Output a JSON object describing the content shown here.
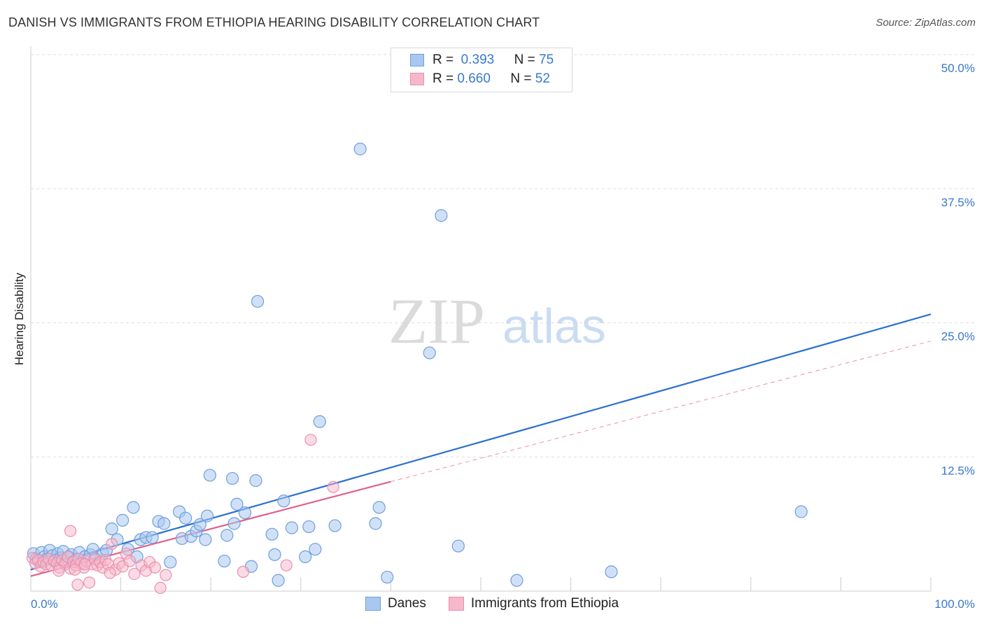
{
  "title": "DANISH VS IMMIGRANTS FROM ETHIOPIA HEARING DISABILITY CORRELATION CHART",
  "source": "Source: ZipAtlas.com",
  "watermark": {
    "zip": "ZIP",
    "atlas": "atlas"
  },
  "legend": {
    "danes": {
      "r_label": "R =",
      "r_value": "0.393",
      "n_label": "N =",
      "n_value": "75"
    },
    "ethiopia": {
      "r_label": "R =",
      "r_value": "0.660",
      "n_label": "N =",
      "n_value": "52"
    }
  },
  "colors": {
    "danes_fill": "#a9c8f0",
    "danes_stroke": "#6e9fdc",
    "danes_line": "#2b6fcf",
    "eth_fill": "#f6b8cb",
    "eth_stroke": "#ec8fab",
    "eth_line": "#e0608a",
    "grid": "#dddddd",
    "tick_label": "#3a78cc"
  },
  "chart_data": {
    "type": "scatter",
    "title": "DANISH VS IMMIGRANTS FROM ETHIOPIA HEARING DISABILITY CORRELATION CHART",
    "xlabel": "",
    "ylabel": "Hearing Disability",
    "xlim": [
      0,
      100
    ],
    "ylim": [
      0,
      50
    ],
    "x_tick_labels": [
      "0.0%",
      "100.0%"
    ],
    "y_ticks": [
      12.5,
      25.0,
      37.5,
      50.0
    ],
    "y_tick_labels": [
      "12.5%",
      "25.0%",
      "37.5%",
      "50.0%"
    ],
    "grid": true,
    "legend_position": "top-center",
    "series": [
      {
        "name": "Danes",
        "points": [
          [
            0.3,
            3.5
          ],
          [
            0.6,
            3.0
          ],
          [
            0.9,
            2.8
          ],
          [
            1.2,
            3.6
          ],
          [
            1.5,
            3.2
          ],
          [
            1.8,
            3.0
          ],
          [
            2.1,
            3.8
          ],
          [
            2.4,
            3.3
          ],
          [
            2.7,
            2.9
          ],
          [
            3.0,
            3.5
          ],
          [
            3.3,
            3.1
          ],
          [
            3.6,
            3.7
          ],
          [
            3.9,
            2.7
          ],
          [
            4.2,
            3.2
          ],
          [
            4.5,
            3.4
          ],
          [
            4.8,
            2.8
          ],
          [
            5.1,
            3.0
          ],
          [
            5.4,
            3.6
          ],
          [
            6.0,
            3.2
          ],
          [
            6.6,
            3.4
          ],
          [
            6.9,
            3.9
          ],
          [
            7.2,
            3.0
          ],
          [
            8.0,
            3.5
          ],
          [
            8.4,
            3.8
          ],
          [
            9.0,
            5.8
          ],
          [
            9.6,
            4.8
          ],
          [
            10.2,
            6.6
          ],
          [
            10.8,
            3.9
          ],
          [
            11.4,
            7.8
          ],
          [
            11.8,
            3.2
          ],
          [
            12.2,
            4.8
          ],
          [
            12.8,
            5.0
          ],
          [
            13.5,
            5.0
          ],
          [
            14.2,
            6.5
          ],
          [
            14.8,
            6.3
          ],
          [
            15.5,
            2.7
          ],
          [
            16.5,
            7.4
          ],
          [
            16.8,
            4.9
          ],
          [
            17.2,
            6.8
          ],
          [
            17.8,
            5.1
          ],
          [
            18.4,
            5.6
          ],
          [
            18.8,
            6.2
          ],
          [
            19.4,
            4.8
          ],
          [
            19.6,
            7.0
          ],
          [
            19.9,
            10.8
          ],
          [
            21.5,
            2.8
          ],
          [
            21.8,
            5.2
          ],
          [
            22.4,
            10.5
          ],
          [
            22.6,
            6.3
          ],
          [
            22.9,
            8.1
          ],
          [
            23.8,
            7.3
          ],
          [
            24.5,
            2.3
          ],
          [
            25.0,
            10.3
          ],
          [
            25.2,
            27.0
          ],
          [
            26.8,
            5.3
          ],
          [
            27.1,
            3.4
          ],
          [
            27.5,
            1.0
          ],
          [
            28.1,
            8.4
          ],
          [
            29.0,
            5.9
          ],
          [
            30.5,
            3.2
          ],
          [
            30.9,
            6.0
          ],
          [
            31.6,
            3.9
          ],
          [
            32.1,
            15.8
          ],
          [
            33.8,
            6.1
          ],
          [
            36.6,
            41.2
          ],
          [
            38.3,
            6.3
          ],
          [
            38.7,
            7.8
          ],
          [
            39.6,
            1.3
          ],
          [
            44.3,
            22.2
          ],
          [
            45.6,
            35.0
          ],
          [
            47.5,
            4.2
          ],
          [
            47.9,
            48.4
          ],
          [
            54.0,
            1.0
          ],
          [
            64.5,
            1.8
          ],
          [
            85.6,
            7.4
          ]
        ],
        "trend": [
          [
            0,
            2.0
          ],
          [
            100,
            25.8
          ]
        ]
      },
      {
        "name": "Immigrants from Ethiopia",
        "points": [
          [
            0.2,
            3.1
          ],
          [
            0.5,
            2.6
          ],
          [
            0.8,
            2.9
          ],
          [
            1.1,
            2.3
          ],
          [
            1.4,
            2.7
          ],
          [
            1.7,
            2.5
          ],
          [
            2.0,
            3.0
          ],
          [
            2.3,
            2.4
          ],
          [
            2.6,
            2.8
          ],
          [
            2.9,
            2.6
          ],
          [
            3.2,
            2.2
          ],
          [
            3.5,
            2.9
          ],
          [
            3.8,
            2.5
          ],
          [
            4.1,
            3.2
          ],
          [
            4.4,
            2.1
          ],
          [
            4.7,
            2.7
          ],
          [
            5.0,
            2.4
          ],
          [
            5.3,
            3.0
          ],
          [
            5.6,
            2.6
          ],
          [
            5.9,
            2.2
          ],
          [
            6.2,
            2.8
          ],
          [
            6.5,
            0.8
          ],
          [
            6.8,
            2.5
          ],
          [
            7.1,
            3.0
          ],
          [
            7.4,
            2.4
          ],
          [
            7.7,
            2.7
          ],
          [
            8.0,
            2.2
          ],
          [
            8.3,
            2.9
          ],
          [
            8.6,
            2.5
          ],
          [
            9.0,
            4.4
          ],
          [
            9.4,
            2.0
          ],
          [
            9.8,
            2.6
          ],
          [
            10.2,
            2.3
          ],
          [
            10.6,
            3.5
          ],
          [
            11.0,
            2.8
          ],
          [
            11.5,
            1.6
          ],
          [
            4.4,
            5.6
          ],
          [
            4.9,
            2.0
          ],
          [
            5.2,
            0.6
          ],
          [
            8.8,
            1.7
          ],
          [
            12.3,
            2.4
          ],
          [
            12.8,
            1.9
          ],
          [
            13.2,
            2.7
          ],
          [
            13.8,
            2.2
          ],
          [
            14.4,
            0.3
          ],
          [
            15.0,
            1.5
          ],
          [
            23.6,
            1.8
          ],
          [
            28.4,
            2.4
          ],
          [
            31.1,
            14.1
          ],
          [
            33.6,
            9.7
          ],
          [
            3.1,
            1.9
          ],
          [
            6.0,
            2.5
          ]
        ],
        "trend": [
          [
            0,
            1.4
          ],
          [
            40,
            10.2
          ]
        ],
        "trend_dashed": [
          [
            40,
            10.2
          ],
          [
            100,
            23.3
          ]
        ]
      }
    ]
  },
  "bottom_legend": {
    "danes": "Danes",
    "ethiopia": "Immigrants from Ethiopia"
  }
}
